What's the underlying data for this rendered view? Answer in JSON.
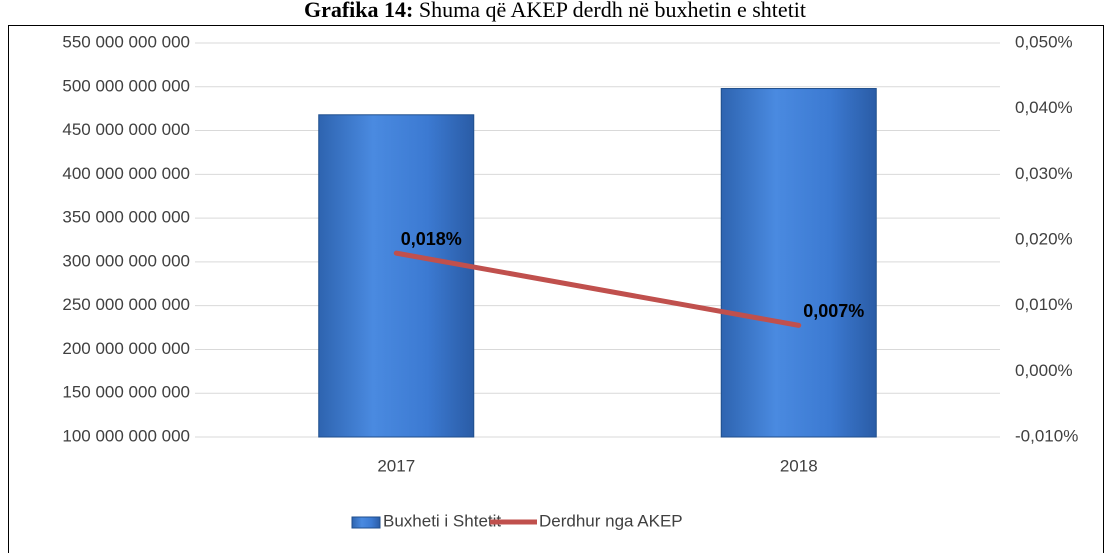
{
  "chart_data": {
    "type": "combo",
    "title_prefix": "Grafika 14:",
    "title": "Shuma që AKEP derdh në buxhetin e shtetit",
    "categories": [
      "2017",
      "2018"
    ],
    "series": [
      {
        "name": "Buxheti i Shtetit",
        "type": "bar",
        "color": "#3f7fd6",
        "values": [
          468000000000,
          498000000000
        ]
      },
      {
        "name": "Derdhur nga AKEP",
        "type": "line",
        "axis": "y2",
        "color": "#c0504d",
        "values": [
          0.018,
          0.007
        ],
        "value_labels": [
          "0,018%",
          "0,007%"
        ]
      }
    ],
    "ylim": [
      100000000000,
      550000000000
    ],
    "yticks": [
      {
        "value": 100000000000,
        "label": "100 000 000 000"
      },
      {
        "value": 150000000000,
        "label": "150 000 000 000"
      },
      {
        "value": 200000000000,
        "label": "200 000 000 000"
      },
      {
        "value": 250000000000,
        "label": "250 000 000 000"
      },
      {
        "value": 300000000000,
        "label": "300 000 000 000"
      },
      {
        "value": 350000000000,
        "label": "350 000 000 000"
      },
      {
        "value": 400000000000,
        "label": "400 000 000 000"
      },
      {
        "value": 450000000000,
        "label": "450 000 000 000"
      },
      {
        "value": 500000000000,
        "label": "500 000 000 000"
      },
      {
        "value": 550000000000,
        "label": "550 000 000 000"
      }
    ],
    "y2lim": [
      -0.01,
      0.05
    ],
    "y2ticks": [
      {
        "value": -0.01,
        "label": "-0,010%"
      },
      {
        "value": 0,
        "label": "0,000%"
      },
      {
        "value": 0.01,
        "label": "0,010%"
      },
      {
        "value": 0.02,
        "label": "0,020%"
      },
      {
        "value": 0.03,
        "label": "0,030%"
      },
      {
        "value": 0.04,
        "label": "0,040%"
      },
      {
        "value": 0.05,
        "label": "0,050%"
      }
    ],
    "grid": true,
    "legend": "bottom"
  }
}
